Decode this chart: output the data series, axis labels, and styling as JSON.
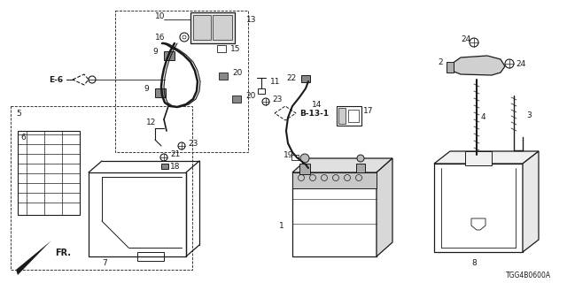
{
  "bg_color": "#ffffff",
  "diagram_code": "TGG4B0600A",
  "line_color": "#1a1a1a",
  "font_size": 6.5,
  "figsize": [
    6.4,
    3.2
  ],
  "dpi": 100
}
